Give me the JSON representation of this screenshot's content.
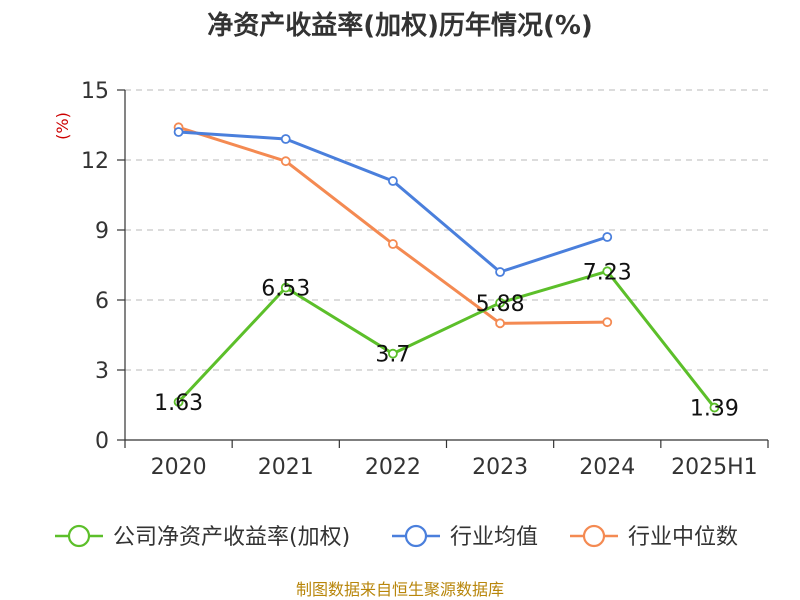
{
  "chart_data": {
    "type": "line",
    "title": "净资产收益率(加权)历年情况(%)",
    "ylabel": "(%)",
    "ylim": [
      0,
      15
    ],
    "yticks": [
      0,
      3,
      6,
      9,
      12,
      15
    ],
    "categories": [
      "2020",
      "2021",
      "2022",
      "2023",
      "2024",
      "2025H1"
    ],
    "grid": true,
    "legend_position": "bottom",
    "series": [
      {
        "name": "公司净资产收益率(加权)",
        "color": "#5cbf2a",
        "values": [
          1.63,
          6.53,
          3.7,
          5.88,
          7.23,
          1.39
        ],
        "labels": [
          "1.63",
          "6.53",
          "3.7",
          "5.88",
          "7.23",
          "1.39"
        ]
      },
      {
        "name": "行业均值",
        "color": "#4a7fdc",
        "values": [
          13.2,
          12.9,
          11.1,
          7.2,
          8.7,
          null
        ]
      },
      {
        "name": "行业中位数",
        "color": "#f48a52",
        "values": [
          13.4,
          11.95,
          8.4,
          5.0,
          5.05,
          null
        ]
      }
    ],
    "source": "制图数据来自恒生聚源数据库"
  }
}
